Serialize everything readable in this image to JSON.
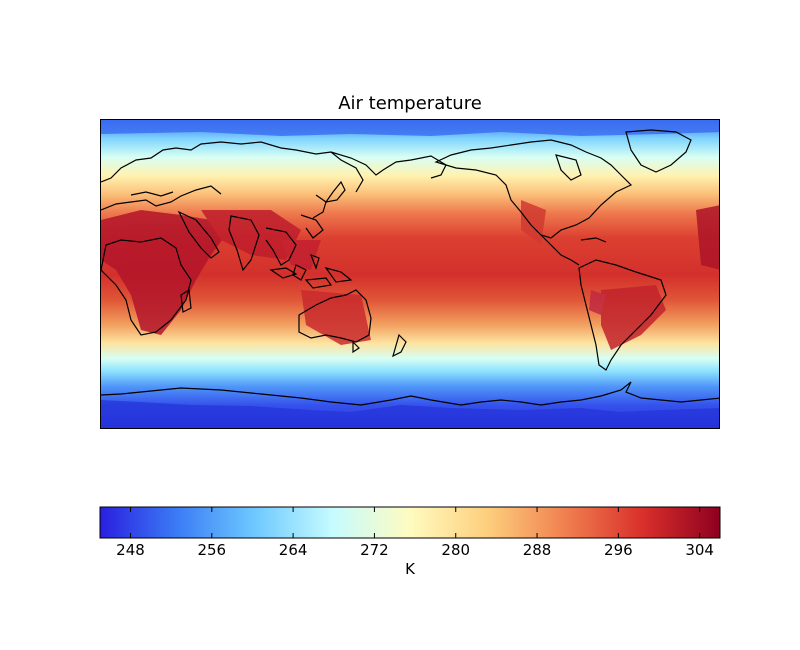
{
  "title": "Air temperature",
  "colorbar": {
    "label": "K",
    "ticks": [
      "248",
      "256",
      "264",
      "272",
      "280",
      "288",
      "296",
      "304"
    ],
    "range": [
      245,
      306
    ],
    "colormap": "jet-like",
    "colors": [
      "#2a1fe0",
      "#3b7cf5",
      "#6ec9ff",
      "#c6fbff",
      "#fffbc0",
      "#fdcf7d",
      "#f08050",
      "#d9302b",
      "#8e0020"
    ]
  },
  "map": {
    "projection": "cylindrical",
    "center_longitude": "180",
    "variable": "Air temperature",
    "units": "K",
    "coastlines": true,
    "colors": {
      "polar_cold": "#2a2ee0",
      "tropics_hot": "#cc2a2a",
      "coastline": "#000000"
    }
  }
}
